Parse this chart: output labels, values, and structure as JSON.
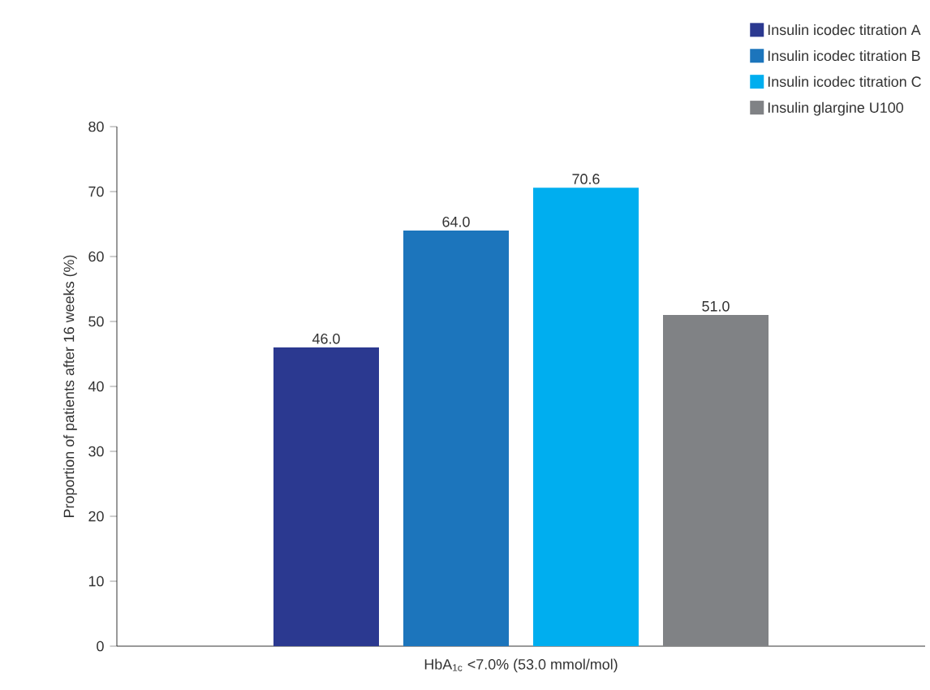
{
  "chart_data": {
    "type": "bar",
    "ylabel": "Proportion of patients after 16 weeks (%)",
    "categories": [
      "HbA$_{1c}$ <7.0% (53.0 mmol/mol)"
    ],
    "series": [
      {
        "name": "Insulin icodec titration A",
        "color": "#2b3990",
        "values": [
          46.0
        ],
        "value_labels": [
          "46.0"
        ]
      },
      {
        "name": "Insulin icodec titration B",
        "color": "#1c75bc",
        "values": [
          64.0
        ],
        "value_labels": [
          "64.0"
        ]
      },
      {
        "name": "Insulin icodec titration C",
        "color": "#00aeef",
        "values": [
          70.6
        ],
        "value_labels": [
          "70.6"
        ]
      },
      {
        "name": "Insulin glargine U100",
        "color": "#808285",
        "values": [
          51.0
        ],
        "value_labels": [
          "51.0"
        ]
      }
    ],
    "ylim": [
      0,
      80
    ],
    "yticks": [
      0,
      10,
      20,
      30,
      40,
      50,
      60,
      70,
      80
    ],
    "legend": "top right",
    "grid": false
  }
}
